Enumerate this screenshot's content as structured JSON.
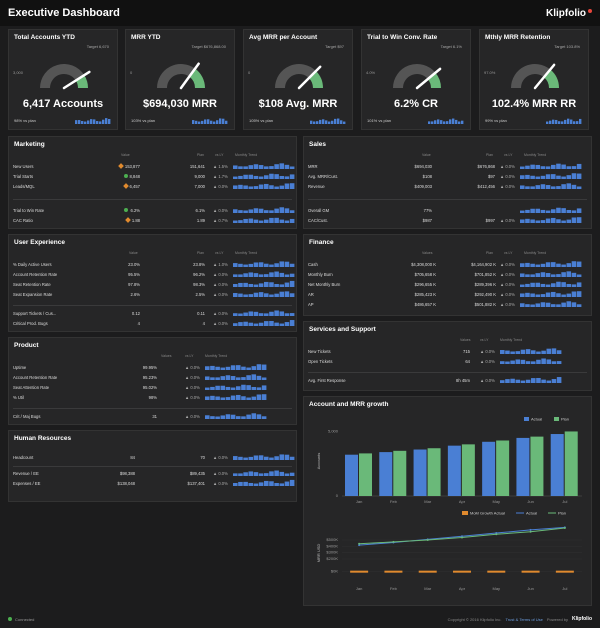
{
  "app": {
    "title": "Executive Dashboard",
    "logo": "Klipfolio"
  },
  "colors": {
    "bar_blue": "#4a7fd4",
    "green": "#6ab979",
    "orange": "#e08a2e",
    "gauge_bg": "#555555"
  },
  "gauges": [
    {
      "title": "Total Accounts YTD",
      "value": "6,417 Accounts",
      "target": "Target 6,670",
      "low": "3,000",
      "foot": "98% vs plan",
      "fill": 0.82
    },
    {
      "title": "MRR YTD",
      "value": "$694,030 MRR",
      "target": "Target $676,868.00",
      "low": "0",
      "foot": "103% vs plan",
      "fill": 0.7
    },
    {
      "title": "Avg MRR per Account",
      "value": "$108 Avg. MRR",
      "target": "Target $97",
      "low": "0",
      "foot": "105% vs plan",
      "fill": 0.75
    },
    {
      "title": "Trial to Win Conv. Rate",
      "value": "6.2% CR",
      "target": "Target 6.1%",
      "low": "4.0%",
      "foot": "101% vs plan",
      "fill": 0.78
    },
    {
      "title": "Mthly MRR Retention",
      "value": "102.4% MRR RR",
      "target": "Target 103.8%",
      "low": "97.0%",
      "foot": "99% vs plan",
      "fill": 0.72
    }
  ],
  "marketing": {
    "title": "Marketing",
    "headers": [
      "Value",
      "Plan",
      "vs LY",
      "Monthly Trend"
    ],
    "rows": [
      {
        "label": "New Users",
        "value": "153,877",
        "plan": "151,641",
        "change": "1.5%",
        "mark": "orange"
      },
      {
        "label": "Trial Starts",
        "value": "8,848",
        "plan": "9,000",
        "change": "1.7%",
        "mark": "green"
      },
      {
        "label": "Leads/MQL",
        "value": "6,457",
        "plan": "7,000",
        "change": "0.0%",
        "mark": "orange"
      },
      {
        "label": "Trial to Win Rate",
        "value": "6.2%",
        "plan": "6.1%",
        "change": "0.0%",
        "mark": "green"
      },
      {
        "label": "CAC Ratio",
        "value": "1.88",
        "plan": "1.89",
        "change": "0.7%",
        "mark": "orange"
      }
    ]
  },
  "sales": {
    "title": "Sales",
    "headers": [
      "Value",
      "Plan",
      "vs LY",
      "Monthly Trend"
    ],
    "rows": [
      {
        "label": "MRR",
        "value": "$694,030",
        "plan": "$676,868",
        "change": "0.0%"
      },
      {
        "label": "Avg. MRR/Cust.",
        "value": "$108",
        "plan": "$97",
        "change": "0.0%"
      },
      {
        "label": "Revenue",
        "value": "$409,003",
        "plan": "$412,456",
        "change": "0.0%"
      },
      {
        "label": "Overall GM",
        "value": "77%",
        "plan": "",
        "change": ""
      },
      {
        "label": "CAC/Cust.",
        "value": "$987",
        "plan": "$997",
        "change": "0.0%"
      }
    ]
  },
  "ux": {
    "title": "User Experience",
    "headers": [
      "Value",
      "Plan",
      "vs LY",
      "Monthly Trend"
    ],
    "rows": [
      {
        "label": "% Daily Active Users",
        "value": "23.0%",
        "plan": "23.8%",
        "change": "1.0%"
      },
      {
        "label": "Account Retention Rate",
        "value": "95.5%",
        "plan": "96.2%",
        "change": "0.0%"
      },
      {
        "label": "Seat Retention Rate",
        "value": "97.8%",
        "plan": "98.3%",
        "change": "0.0%"
      },
      {
        "label": "Seat Expansion Rate",
        "value": "2.6%",
        "plan": "2.5%",
        "change": "0.0%"
      },
      {
        "label": "Support Tickets / Cus...",
        "value": "0.12",
        "plan": "0.11",
        "change": "0.0%"
      },
      {
        "label": "Critical Prod. Bugs",
        "value": "4",
        "plan": "4",
        "change": "0.0%"
      }
    ]
  },
  "finance": {
    "title": "Finance",
    "headers": [
      "Values",
      "Plan",
      "vs LY",
      "Monthly Trend"
    ],
    "rows": [
      {
        "label": "Cash",
        "value": "$4,308,000 K",
        "plan": "$4,164,902 K",
        "change": "0.0%"
      },
      {
        "label": "Monthly Burn",
        "value": "$705,658 K",
        "plan": "$701,852 K",
        "change": "0.0%"
      },
      {
        "label": "Net Monthly Burn",
        "value": "$296,655 K",
        "plan": "$289,396 K",
        "change": "0.0%"
      },
      {
        "label": "AR",
        "value": "$285,423 K",
        "plan": "$292,490 K",
        "change": "0.0%"
      },
      {
        "label": "AP",
        "value": "$486,657 K",
        "plan": "$501,882 K",
        "change": "0.0%"
      }
    ]
  },
  "product": {
    "title": "Product",
    "headers": [
      "Values",
      "vs LY",
      "Monthly Trend"
    ],
    "rows": [
      {
        "label": "Uptime",
        "value": "99.95%",
        "change": "0.0%"
      },
      {
        "label": "Account Retention Rate",
        "value": "95.23%",
        "change": "0.0%"
      },
      {
        "label": "Seat Attention Rate",
        "value": "95.02%",
        "change": "0.0%"
      },
      {
        "label": "% Util",
        "value": "98%",
        "change": "0.0%"
      },
      {
        "label": "Crit / Maj Bugs",
        "value": "31",
        "change": "0.0%"
      }
    ]
  },
  "services": {
    "title": "Services and Support",
    "headers": [
      "Values",
      "vs LY",
      "Monthly Trend"
    ],
    "rows": [
      {
        "label": "New Tickets",
        "value": "715",
        "change": "0.0%"
      },
      {
        "label": "Open Tickets",
        "value": "64",
        "change": "0.0%"
      },
      {
        "label": "Avg. First Response",
        "value": "8h 45m",
        "change": "0.0%"
      }
    ]
  },
  "hr": {
    "title": "Human Resources",
    "rows": [
      {
        "label": "Headcount",
        "value": "84",
        "plan": "70",
        "change": "0.0%"
      },
      {
        "label": "Revenue / EE",
        "value": "$98,388",
        "plan": "$89,435",
        "change": "0.0%"
      },
      {
        "label": "Expenses / EE",
        "value": "$138,048",
        "plan": "$137,401",
        "change": "0.0%"
      }
    ]
  },
  "growth": {
    "title": "Account and MRR growth",
    "chart_data": [
      {
        "type": "bar",
        "categories": [
          "Jan",
          "Feb",
          "Mar",
          "Apr",
          "May",
          "Jun",
          "Jul"
        ],
        "series": [
          {
            "name": "Actual",
            "values": [
              3200,
              3400,
              3600,
              3900,
              4200,
              4500,
              4800
            ]
          },
          {
            "name": "Plan",
            "values": [
              3300,
              3500,
              3700,
              4000,
              4300,
              4600,
              5000
            ]
          }
        ],
        "ylabel": "Accounts",
        "yticks": [
          "0",
          "5,000"
        ],
        "ylim": [
          0,
          5500
        ]
      },
      {
        "type": "line",
        "categories": [
          "Jan",
          "Feb",
          "Mar",
          "Apr",
          "May",
          "Jun",
          "Jul"
        ],
        "series": [
          {
            "name": "MoM Growth Actual",
            "values": [
              0,
              0,
              0,
              0,
              0,
              0,
              0
            ]
          },
          {
            "name": "Actual",
            "values": [
              420,
              460,
              510,
              560,
              610,
              660,
              700
            ]
          },
          {
            "name": "Plan",
            "values": [
              440,
              470,
              500,
              540,
              590,
              630,
              690
            ]
          }
        ],
        "ylabel": "MRR USD",
        "yticks": [
          "$0K",
          "$200K",
          "$300K",
          "$400K",
          "$500K"
        ],
        "ylim": [
          -100,
          800
        ]
      }
    ]
  },
  "footer": {
    "status": "Connected",
    "copyright": "Copyright © 2016 Klipfolio Inc.",
    "links": "Trust & Terms of Use",
    "powered": "Powered by",
    "brand": "Klipfolio"
  }
}
